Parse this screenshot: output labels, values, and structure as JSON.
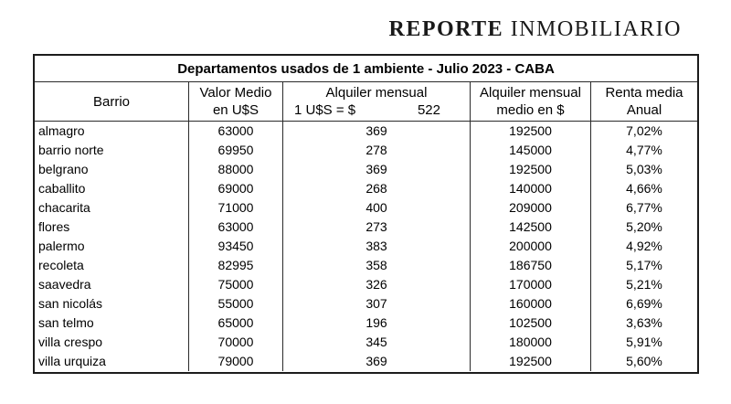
{
  "logo": {
    "bold": "REPORTE",
    "regular": " INMOBILIARIO"
  },
  "table": {
    "title": "Departamentos usados de 1 ambiente - Julio 2023 - CABA",
    "header": {
      "barrio": "Barrio",
      "valor_line1": "Valor Medio",
      "valor_line2": "en U$S",
      "alquiler_line1": "Alquiler mensual",
      "rate_label": "1 U$S = $",
      "rate_value": "522",
      "alquiler_medio_line1": "Alquiler mensual",
      "alquiler_medio_line2": "medio en $",
      "renta_line1": "Renta media",
      "renta_line2": "Anual"
    },
    "rows": [
      {
        "barrio": "almagro",
        "valor": "63000",
        "alquiler": "369",
        "alquiler_medio": "192500",
        "renta": "7,02%"
      },
      {
        "barrio": "barrio norte",
        "valor": "69950",
        "alquiler": "278",
        "alquiler_medio": "145000",
        "renta": "4,77%"
      },
      {
        "barrio": "belgrano",
        "valor": "88000",
        "alquiler": "369",
        "alquiler_medio": "192500",
        "renta": "5,03%"
      },
      {
        "barrio": "caballito",
        "valor": "69000",
        "alquiler": "268",
        "alquiler_medio": "140000",
        "renta": "4,66%"
      },
      {
        "barrio": "chacarita",
        "valor": "71000",
        "alquiler": "400",
        "alquiler_medio": "209000",
        "renta": "6,77%"
      },
      {
        "barrio": "flores",
        "valor": "63000",
        "alquiler": "273",
        "alquiler_medio": "142500",
        "renta": "5,20%"
      },
      {
        "barrio": "palermo",
        "valor": "93450",
        "alquiler": "383",
        "alquiler_medio": "200000",
        "renta": "4,92%"
      },
      {
        "barrio": "recoleta",
        "valor": "82995",
        "alquiler": "358",
        "alquiler_medio": "186750",
        "renta": "5,17%"
      },
      {
        "barrio": "saavedra",
        "valor": "75000",
        "alquiler": "326",
        "alquiler_medio": "170000",
        "renta": "5,21%"
      },
      {
        "barrio": "san nicolás",
        "valor": "55000",
        "alquiler": "307",
        "alquiler_medio": "160000",
        "renta": "6,69%"
      },
      {
        "barrio": "san telmo",
        "valor": "65000",
        "alquiler": "196",
        "alquiler_medio": "102500",
        "renta": "3,63%"
      },
      {
        "barrio": "villa crespo",
        "valor": "70000",
        "alquiler": "345",
        "alquiler_medio": "180000",
        "renta": "5,91%"
      },
      {
        "barrio": "villa urquiza",
        "valor": "79000",
        "alquiler": "369",
        "alquiler_medio": "192500",
        "renta": "5,60%"
      }
    ]
  }
}
